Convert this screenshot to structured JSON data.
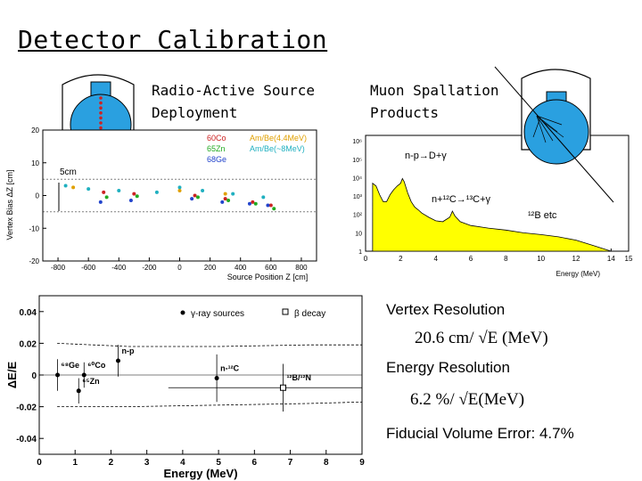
{
  "slide": {
    "title": "Detector Calibration",
    "source_caption": [
      "Radio-Active Source",
      "Deployment"
    ],
    "muon_caption": [
      "Muon Spallation",
      "Products"
    ],
    "vertex_label": "Vertex Resolution",
    "vertex_formula": "20.6 cm/ √E (MeV)",
    "energy_label": "Energy Resolution",
    "energy_formula": "6.2 %/ √E(MeV)",
    "fiducial": "Fiducial Volume Error: 4.7%"
  },
  "colors": {
    "yellow_fill": "#ffff00",
    "detector_blue": "#2aa0e0",
    "source_red": "#cc2222"
  },
  "chart_data": [
    {
      "type": "scatter",
      "ylabel": "Vertex Bias ΔZ [cm]",
      "xlabel": "Source Position Z [cm]",
      "xlim": [
        -900,
        900
      ],
      "ylim": [
        -20,
        20
      ],
      "x_ticks": [
        -800,
        -600,
        -400,
        -200,
        0,
        200,
        400,
        600,
        800
      ],
      "y_ticks": [
        -20,
        -10,
        0,
        10,
        20
      ],
      "annotation": "5cm",
      "legend": [
        {
          "label": "60Co",
          "color": "#cc2222"
        },
        {
          "label": "65Zn",
          "color": "#22aa22"
        },
        {
          "label": "68Ge",
          "color": "#2244cc"
        },
        {
          "label": "Am/Be(4.4MeV)",
          "color": "#e0a000"
        },
        {
          "label": "Am/Be(~8MeV)",
          "color": "#20b0c0"
        }
      ],
      "series": [
        {
          "name": "60Co",
          "color": "#cc2222",
          "x": [
            -500,
            -300,
            100,
            300,
            480,
            600
          ],
          "y": [
            1,
            0.5,
            0,
            -1,
            -2,
            -3
          ]
        },
        {
          "name": "65Zn",
          "color": "#22aa22",
          "x": [
            -480,
            -280,
            120,
            320,
            500,
            620
          ],
          "y": [
            -0.5,
            -0.2,
            -0.5,
            -1.5,
            -2.5,
            -4
          ]
        },
        {
          "name": "68Ge",
          "color": "#2244cc",
          "x": [
            -520,
            -320,
            80,
            280,
            460,
            580
          ],
          "y": [
            -2,
            -1.5,
            -1,
            -2,
            -2.5,
            -3
          ]
        },
        {
          "name": "Am/Be(4.4MeV)",
          "color": "#e0a000",
          "x": [
            -700,
            0,
            300
          ],
          "y": [
            2.5,
            1.5,
            0.5
          ]
        },
        {
          "name": "Am/Be(~8MeV)",
          "color": "#20b0c0",
          "x": [
            -750,
            -600,
            -400,
            -150,
            0,
            150,
            350,
            550
          ],
          "y": [
            3,
            2,
            1.5,
            1,
            2.5,
            1.5,
            0.5,
            -0.5
          ]
        }
      ]
    },
    {
      "type": "area",
      "xlabel": "Energy (MeV)",
      "xlim": [
        0,
        15
      ],
      "x_ticks": [
        0,
        2,
        4,
        6,
        8,
        10,
        12,
        14,
        15
      ],
      "y_tick_labels": [
        "1",
        "10",
        "10²",
        "10³",
        "10⁴",
        "10⁵",
        "10⁶"
      ],
      "log_y": true,
      "annotations": [
        "n-p→D+γ",
        "n+¹²C→¹³C+γ",
        "¹²B etc"
      ],
      "x": [
        0.4,
        0.6,
        0.8,
        1.0,
        1.2,
        1.4,
        1.6,
        1.8,
        2.0,
        2.1,
        2.2,
        2.4,
        2.6,
        2.8,
        3.0,
        3.2,
        3.6,
        4.0,
        4.4,
        4.8,
        4.95,
        5.1,
        5.4,
        6.0,
        7.0,
        8.0,
        9.0,
        10.0,
        11.0,
        12.0,
        13.0,
        14.0
      ],
      "y": [
        5000,
        3500,
        1200,
        500,
        500,
        1200,
        2200,
        3500,
        5000,
        9000,
        6000,
        1500,
        500,
        250,
        180,
        120,
        70,
        45,
        40,
        70,
        150,
        80,
        40,
        25,
        18,
        14,
        10,
        8,
        6,
        4,
        2,
        1
      ]
    },
    {
      "type": "scatter",
      "xlabel": "Energy (MeV)",
      "ylabel": "ΔE/E",
      "xlim": [
        0,
        9
      ],
      "ylim": [
        -0.05,
        0.05
      ],
      "x_ticks": [
        0,
        1,
        2,
        3,
        4,
        5,
        6,
        7,
        8,
        9
      ],
      "y_ticks": [
        -0.04,
        -0.02,
        0,
        0.02,
        0.04
      ],
      "legend": [
        "γ-ray sources",
        "β decay"
      ],
      "points": [
        {
          "label": "⁶⁸Ge",
          "x": 0.511,
          "y": 0.0,
          "err": 0.01,
          "type": "gamma"
        },
        {
          "label": "⁶⁵Zn",
          "x": 1.1,
          "y": -0.01,
          "err": 0.008,
          "type": "gamma"
        },
        {
          "label": "⁶⁰Co",
          "x": 1.25,
          "y": 0.0,
          "err": 0.008,
          "type": "gamma"
        },
        {
          "label": "n-p",
          "x": 2.2,
          "y": 0.009,
          "err": 0.01,
          "type": "gamma"
        },
        {
          "label": "n-¹²C",
          "x": 4.95,
          "y": -0.002,
          "err": 0.015,
          "type": "gamma"
        },
        {
          "label": "¹²B/¹²N",
          "x": 6.8,
          "y": -0.008,
          "err": 0.015,
          "xerr": 3.2,
          "type": "beta"
        }
      ],
      "band_upper": [
        0.02,
        0.018,
        0.018,
        0.019,
        0.019
      ],
      "band_lower": [
        -0.02,
        -0.02,
        -0.019,
        -0.018,
        -0.017
      ],
      "band_x": [
        0.5,
        2.5,
        5,
        7.5,
        9
      ]
    }
  ]
}
